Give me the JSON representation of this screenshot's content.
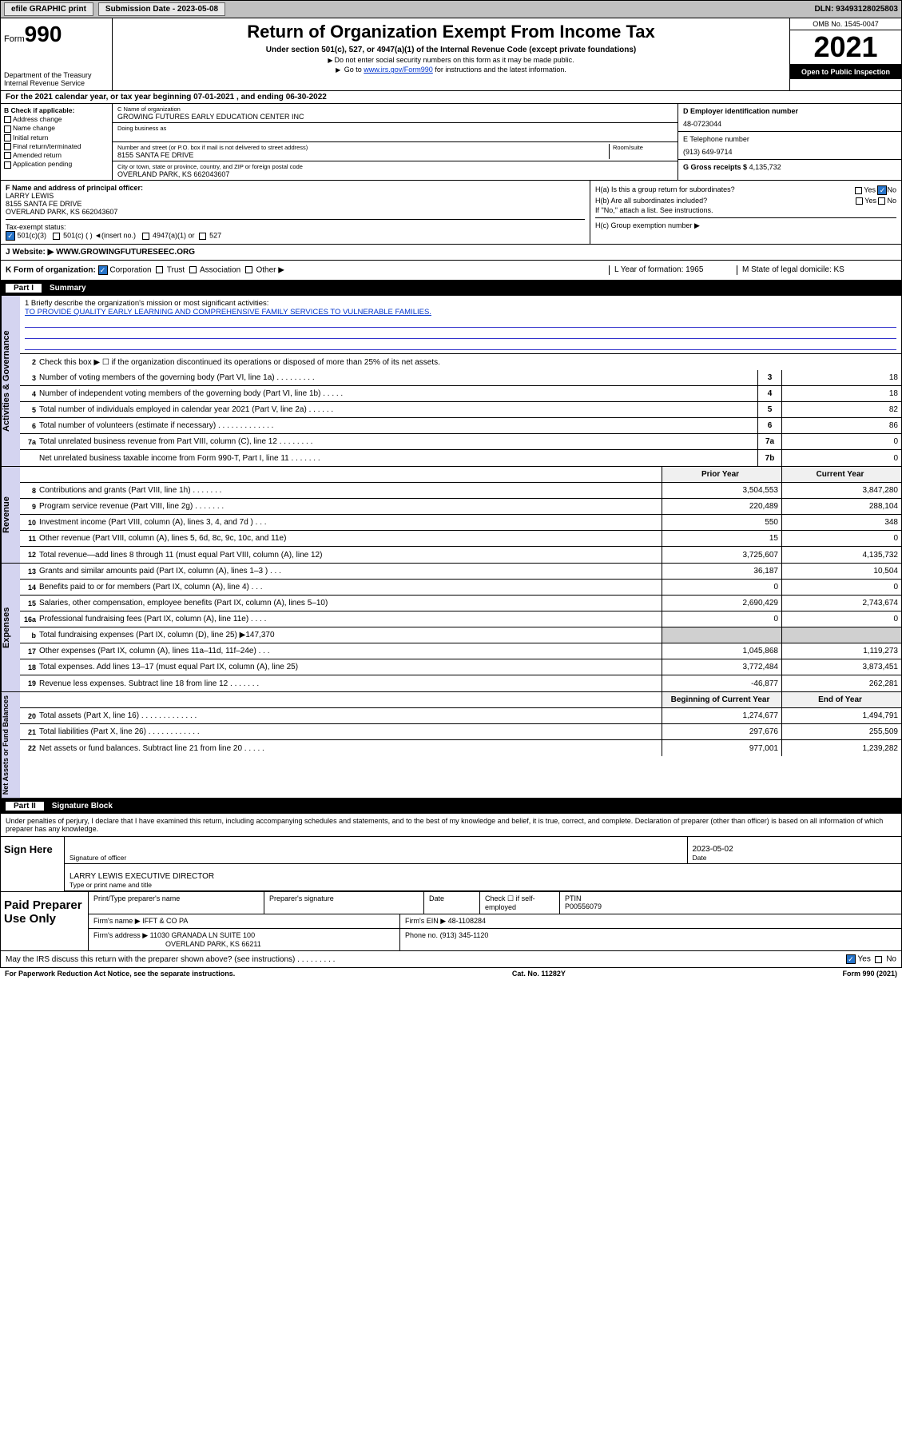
{
  "topbar": {
    "efile": "efile GRAPHIC print",
    "subdate_lbl": "Submission Date - 2023-05-08",
    "dln": "DLN: 93493128025803"
  },
  "header": {
    "form_prefix": "Form",
    "form_num": "990",
    "dept": "Department of the Treasury Internal Revenue Service",
    "title": "Return of Organization Exempt From Income Tax",
    "sub": "Under section 501(c), 527, or 4947(a)(1) of the Internal Revenue Code (except private foundations)",
    "note1": "Do not enter social security numbers on this form as it may be made public.",
    "note2_pre": "Go to ",
    "note2_link": "www.irs.gov/Form990",
    "note2_post": " for instructions and the latest information.",
    "omb": "OMB No. 1545-0047",
    "year": "2021",
    "open": "Open to Public Inspection"
  },
  "section_a": "For the 2021 calendar year, or tax year beginning 07-01-2021   , and ending 06-30-2022",
  "col_b": {
    "hdr": "B Check if applicable:",
    "items": [
      "Address change",
      "Name change",
      "Initial return",
      "Final return/terminated",
      "Amended return",
      "Application pending"
    ]
  },
  "col_c": {
    "name_lbl": "C Name of organization",
    "name": "GROWING FUTURES EARLY EDUCATION CENTER INC",
    "dba_lbl": "Doing business as",
    "addr_lbl": "Number and street (or P.O. box if mail is not delivered to street address)",
    "room_lbl": "Room/suite",
    "addr": "8155 SANTA FE DRIVE",
    "city_lbl": "City or town, state or province, country, and ZIP or foreign postal code",
    "city": "OVERLAND PARK, KS  662043607"
  },
  "col_d": {
    "ein_lbl": "D Employer identification number",
    "ein": "48-0723044",
    "tel_lbl": "E Telephone number",
    "tel": "(913) 649-9714",
    "gross_lbl": "G Gross receipts $",
    "gross": "4,135,732"
  },
  "col_f": {
    "lbl": "F Name and address of principal officer:",
    "name": "LARRY LEWIS",
    "addr1": "8155 SANTA FE DRIVE",
    "addr2": "OVERLAND PARK, KS  662043607",
    "tax_lbl": "Tax-exempt status:",
    "tax1": "501(c)(3)",
    "tax2": "501(c) (  ) ◄(insert no.)",
    "tax3": "4947(a)(1) or",
    "tax4": "527"
  },
  "col_h": {
    "ha": "H(a)  Is this a group return for subordinates?",
    "hb": "H(b)  Are all subordinates included?",
    "hb_note": "If \"No,\" attach a list. See instructions.",
    "hc": "H(c)  Group exemption number ▶",
    "yes": "Yes",
    "no": "No"
  },
  "row_j": {
    "lbl": "J  Website: ▶",
    "val": "WWW.GROWINGFUTURESEEC.ORG"
  },
  "row_k": {
    "lbl": "K Form of organization:",
    "corp": "Corporation",
    "trust": "Trust",
    "assoc": "Association",
    "other": "Other ▶",
    "l": "L Year of formation: 1965",
    "m": "M State of legal domicile: KS"
  },
  "part1": {
    "num": "Part I",
    "title": "Summary"
  },
  "vtabs": [
    "Activities & Governance",
    "Revenue",
    "Expenses",
    "Net Assets or Fund Balances"
  ],
  "mission": {
    "lbl": "1   Briefly describe the organization's mission or most significant activities:",
    "txt": "TO PROVIDE QUALITY EARLY LEARNING AND COMPREHENSIVE FAMILY SERVICES TO VULNERABLE FAMILIES."
  },
  "line2": "Check this box ▶ ☐  if the organization discontinued its operations or disposed of more than 25% of its net assets.",
  "gov_lines": [
    {
      "n": "3",
      "d": "Number of voting members of the governing body (Part VI, line 1a)   .     .     .     .     .     .     .     .     .",
      "b": "3",
      "v": "18"
    },
    {
      "n": "4",
      "d": "Number of independent voting members of the governing body (Part VI, line 1b)   .     .     .     .     .",
      "b": "4",
      "v": "18"
    },
    {
      "n": "5",
      "d": "Total number of individuals employed in calendar year 2021 (Part V, line 2a)   .     .     .     .     .     .",
      "b": "5",
      "v": "82"
    },
    {
      "n": "6",
      "d": "Total number of volunteers (estimate if necessary)   .     .     .     .     .     .     .     .     .     .     .     .     .",
      "b": "6",
      "v": "86"
    },
    {
      "n": "7a",
      "d": "Total unrelated business revenue from Part VIII, column (C), line 12   .     .     .     .     .     .     .     .",
      "b": "7a",
      "v": "0"
    },
    {
      "n": "",
      "d": "Net unrelated business taxable income from Form 990-T, Part I, line 11   .     .     .     .     .     .     .",
      "b": "7b",
      "v": "0"
    }
  ],
  "year_hdr": {
    "p": "Prior Year",
    "c": "Current Year"
  },
  "rev_lines": [
    {
      "n": "8",
      "d": "Contributions and grants (Part VIII, line 1h)   .     .     .     .     .     .     .",
      "p": "3,504,553",
      "c": "3,847,280"
    },
    {
      "n": "9",
      "d": "Program service revenue (Part VIII, line 2g)   .     .     .     .     .     .     .",
      "p": "220,489",
      "c": "288,104"
    },
    {
      "n": "10",
      "d": "Investment income (Part VIII, column (A), lines 3, 4, and 7d )   .     .     .",
      "p": "550",
      "c": "348"
    },
    {
      "n": "11",
      "d": "Other revenue (Part VIII, column (A), lines 5, 6d, 8c, 9c, 10c, and 11e)",
      "p": "15",
      "c": "0"
    },
    {
      "n": "12",
      "d": "Total revenue—add lines 8 through 11 (must equal Part VIII, column (A), line 12)",
      "p": "3,725,607",
      "c": "4,135,732"
    }
  ],
  "exp_lines": [
    {
      "n": "13",
      "d": "Grants and similar amounts paid (Part IX, column (A), lines 1–3 )   .     .     .",
      "p": "36,187",
      "c": "10,504"
    },
    {
      "n": "14",
      "d": "Benefits paid to or for members (Part IX, column (A), line 4)   .     .     .",
      "p": "0",
      "c": "0"
    },
    {
      "n": "15",
      "d": "Salaries, other compensation, employee benefits (Part IX, column (A), lines 5–10)",
      "p": "2,690,429",
      "c": "2,743,674"
    },
    {
      "n": "16a",
      "d": "Professional fundraising fees (Part IX, column (A), line 11e)   .     .     .     .",
      "p": "0",
      "c": "0"
    },
    {
      "n": "b",
      "d": "Total fundraising expenses (Part IX, column (D), line 25) ▶147,370",
      "p": "",
      "c": "",
      "shade": true
    },
    {
      "n": "17",
      "d": "Other expenses (Part IX, column (A), lines 11a–11d, 11f–24e)   .     .     .",
      "p": "1,045,868",
      "c": "1,119,273"
    },
    {
      "n": "18",
      "d": "Total expenses. Add lines 13–17 (must equal Part IX, column (A), line 25)",
      "p": "3,772,484",
      "c": "3,873,451"
    },
    {
      "n": "19",
      "d": "Revenue less expenses. Subtract line 18 from line 12   .     .     .     .     .     .     .",
      "p": "-46,877",
      "c": "262,281"
    }
  ],
  "net_hdr": {
    "p": "Beginning of Current Year",
    "c": "End of Year"
  },
  "net_lines": [
    {
      "n": "20",
      "d": "Total assets (Part X, line 16)   .     .     .     .     .     .     .     .     .     .     .     .     .",
      "p": "1,274,677",
      "c": "1,494,791"
    },
    {
      "n": "21",
      "d": "Total liabilities (Part X, line 26)   .     .     .     .     .     .     .     .     .     .     .     .",
      "p": "297,676",
      "c": "255,509"
    },
    {
      "n": "22",
      "d": "Net assets or fund balances. Subtract line 21 from line 20   .     .     .     .     .",
      "p": "977,001",
      "c": "1,239,282"
    }
  ],
  "part2": {
    "num": "Part II",
    "title": "Signature Block"
  },
  "sig_txt": "Under penalties of perjury, I declare that I have examined this return, including accompanying schedules and statements, and to the best of my knowledge and belief, it is true, correct, and complete. Declaration of preparer (other than officer) is based on all information of which preparer has any knowledge.",
  "sign": {
    "here": "Sign Here",
    "sig_lbl": "Signature of officer",
    "date_lbl": "Date",
    "date": "2023-05-02",
    "name": "LARRY LEWIS  EXECUTIVE DIRECTOR",
    "name_lbl": "Type or print name and title"
  },
  "prep": {
    "title": "Paid Preparer Use Only",
    "r1": {
      "a": "Print/Type preparer's name",
      "b": "Preparer's signature",
      "c": "Date",
      "d": "Check ☐ if self-employed",
      "e": "PTIN",
      "ev": "P00556079"
    },
    "r2": {
      "a": "Firm's name    ▶",
      "av": "IFFT & CO PA",
      "b": "Firm's EIN ▶",
      "bv": "48-1108284"
    },
    "r3": {
      "a": "Firm's address ▶",
      "av": "11030 GRANADA LN SUITE 100",
      "av2": "OVERLAND PARK, KS  66211",
      "b": "Phone no.",
      "bv": "(913) 345-1120"
    }
  },
  "discuss": "May the IRS discuss this return with the preparer shown above? (see instructions)   .     .     .     .     .     .     .     .     .",
  "discuss_yes": "Yes",
  "discuss_no": "No",
  "footer": {
    "l": "For Paperwork Reduction Act Notice, see the separate instructions.",
    "m": "Cat. No. 11282Y",
    "r": "Form 990 (2021)"
  }
}
